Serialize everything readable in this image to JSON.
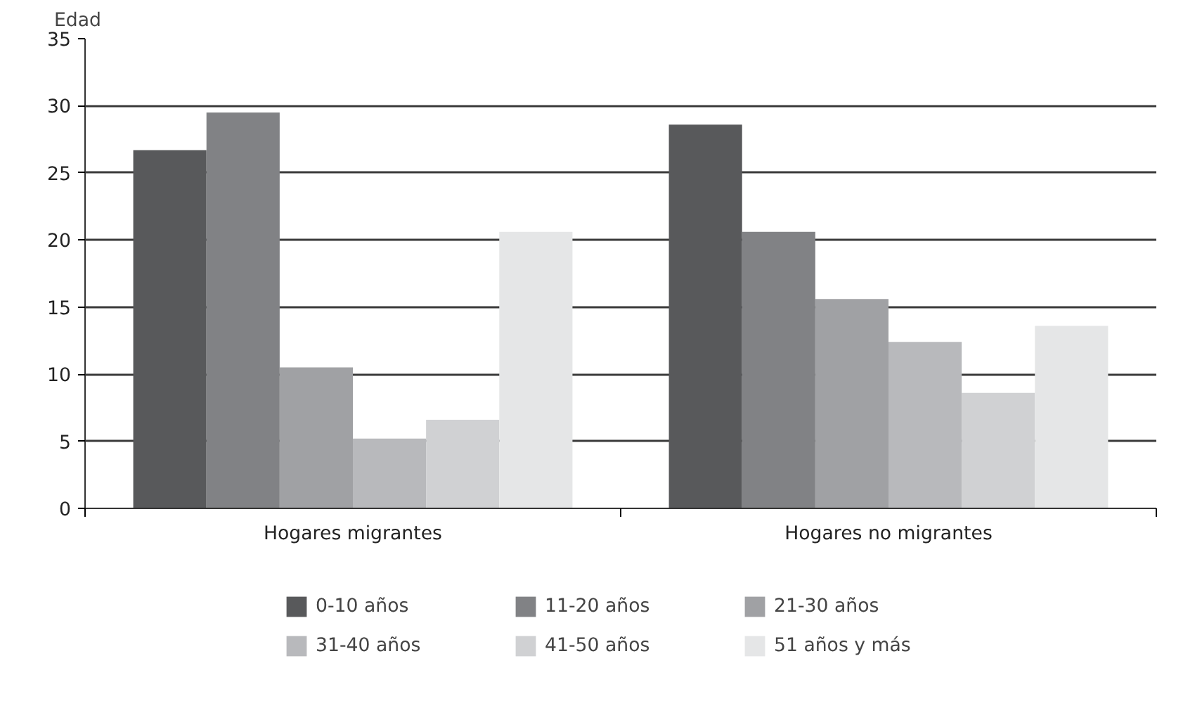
{
  "chart_data": {
    "type": "bar",
    "ylabel": "Edad",
    "categories": [
      "Hogares migrantes",
      "Hogares no migrantes"
    ],
    "series": [
      {
        "name": "0-10 años",
        "color": "#58595b",
        "values": [
          26.7,
          28.6
        ]
      },
      {
        "name": "11-20 años",
        "color": "#818285",
        "values": [
          29.5,
          20.6
        ]
      },
      {
        "name": "21-30 años",
        "color": "#a0a1a4",
        "values": [
          10.5,
          15.6
        ]
      },
      {
        "name": "31-40 años",
        "color": "#b8b9bc",
        "values": [
          5.2,
          12.4
        ]
      },
      {
        "name": "41-50 años",
        "color": "#d0d1d3",
        "values": [
          6.6,
          8.6
        ]
      },
      {
        "name": "51 años y más",
        "color": "#e5e6e7",
        "values": [
          20.6,
          13.6
        ]
      }
    ],
    "ylim": [
      0,
      35
    ],
    "yticks": [
      0,
      5,
      10,
      15,
      20,
      25,
      30,
      35
    ],
    "grid": "y",
    "legend": "bottom"
  }
}
